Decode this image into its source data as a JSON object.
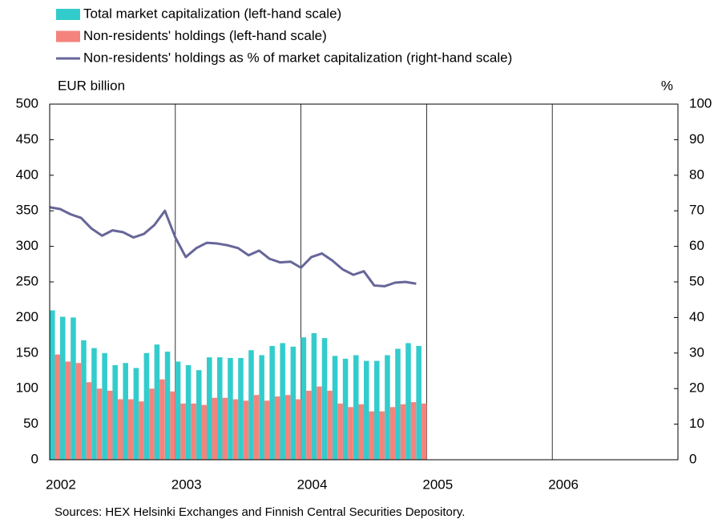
{
  "chart_data": {
    "type": "bar",
    "ylabel": "EUR billion",
    "y2label": "%",
    "source": "Sources: HEX Helsinki Exchanges and Finnish Central Securities Depository.",
    "x": [
      2002,
      2002.083,
      2002.167,
      2002.25,
      2002.333,
      2002.417,
      2002.5,
      2002.583,
      2002.667,
      2002.75,
      2002.833,
      2002.917,
      2003,
      2003.083,
      2003.167,
      2003.25,
      2003.333,
      2003.417,
      2003.5,
      2003.583,
      2003.667,
      2003.75,
      2003.833,
      2003.917,
      2004,
      2004.083,
      2004.167,
      2004.25,
      2004.333,
      2004.417,
      2004.5,
      2004.583,
      2004.667,
      2004.75,
      2004.833,
      2004.917
    ],
    "xlim": [
      2002,
      2007
    ],
    "xticks": [
      2002,
      2003,
      2004,
      2005,
      2006
    ],
    "ylim": [
      0,
      500
    ],
    "yticks": [
      0,
      50,
      100,
      150,
      200,
      250,
      300,
      350,
      400,
      450,
      500
    ],
    "y2lim": [
      0,
      100
    ],
    "y2ticks": [
      0,
      10,
      20,
      30,
      40,
      50,
      60,
      70,
      80,
      90,
      100
    ],
    "grid": "x",
    "series": [
      {
        "name": "Total market capitalization (left-hand scale)",
        "type": "bar",
        "color": "#33cccc",
        "values": [
          210,
          201,
          200,
          168,
          157,
          150,
          133,
          136,
          129,
          150,
          162,
          152,
          138,
          133,
          126,
          144,
          144,
          143,
          143,
          154,
          147,
          160,
          164,
          159,
          172,
          178,
          171,
          146,
          142,
          147,
          139,
          139,
          147,
          156,
          164,
          160
        ]
      },
      {
        "name": "Non-residents' holdings (left-hand scale)",
        "type": "bar",
        "color": "#f4837d",
        "values": [
          148,
          138,
          136,
          109,
          100,
          97,
          85,
          85,
          82,
          100,
          113,
          96,
          79,
          79,
          77,
          87,
          87,
          85,
          83,
          91,
          83,
          89,
          91,
          85,
          97,
          103,
          97,
          79,
          74,
          78,
          68,
          68,
          74,
          78,
          81,
          79
        ]
      },
      {
        "name": "Non-residents' holdings as % of market capitalization (right-hand scale)",
        "type": "line",
        "axis": "y2",
        "color": "#666699",
        "values": [
          71,
          70.5,
          69,
          68,
          65,
          63,
          64.5,
          64,
          62.5,
          63.5,
          66,
          70,
          62.5,
          57,
          59.5,
          61,
          60.8,
          60.3,
          59.5,
          57.5,
          58.8,
          56.5,
          55.5,
          55.7,
          54,
          57,
          58,
          56,
          53.5,
          52,
          53,
          49,
          48.8,
          49.8,
          50,
          49.5
        ]
      }
    ]
  }
}
